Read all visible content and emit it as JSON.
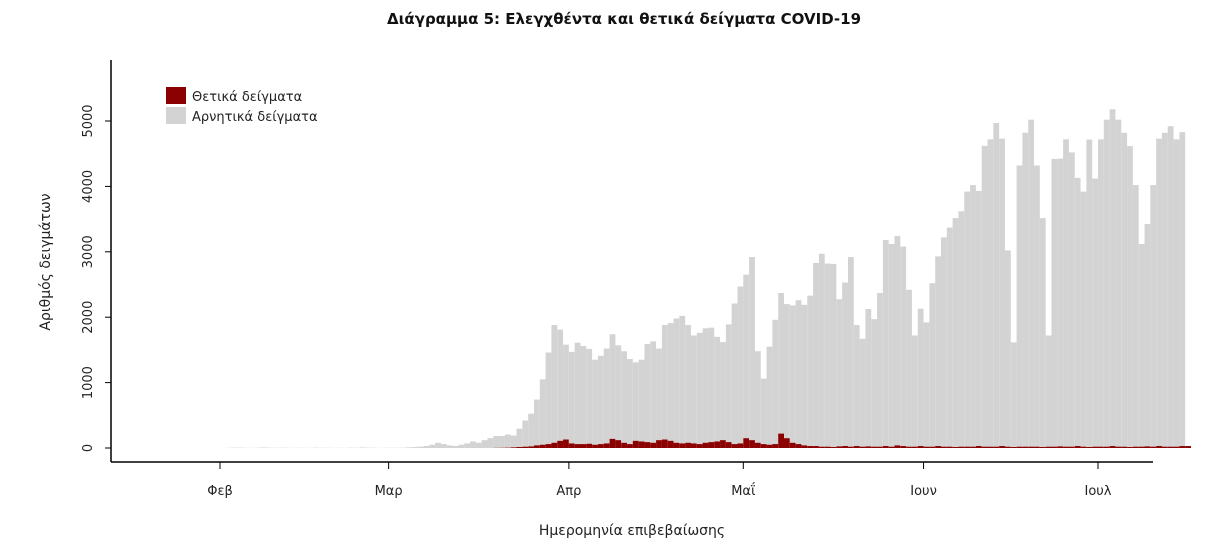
{
  "chart_data": {
    "type": "bar",
    "stacked": true,
    "title": "Διάγραμμα 5: Ελεγχθέντα και θετικά δείγματα COVID-19",
    "xlabel": "Ημερομηνία επιβεβαίωσης",
    "ylabel": "Αριθμός δειγμάτων",
    "ylim": [
      0,
      5700
    ],
    "yticks": [
      0,
      1000,
      2000,
      3000,
      4000,
      5000
    ],
    "xlim": [
      "2020-01-16",
      "2020-07-08"
    ],
    "xticks": [
      {
        "date": "2020-02-01",
        "label": "Φεβ"
      },
      {
        "date": "2020-03-01",
        "label": "Μαρ"
      },
      {
        "date": "2020-04-01",
        "label": "Απρ"
      },
      {
        "date": "2020-05-01",
        "label": "Μαΐ"
      },
      {
        "date": "2020-06-01",
        "label": "Ιουν"
      },
      {
        "date": "2020-07-01",
        "label": "Ιουλ"
      }
    ],
    "legend_position": "top-left",
    "series": [
      {
        "name": "Θετικά δείγματα",
        "color": "#8b0000",
        "values": [
          0,
          0,
          0,
          0,
          0,
          0,
          0,
          0,
          0,
          0,
          0,
          0,
          0,
          0,
          0,
          0,
          0,
          0,
          0,
          0,
          0,
          0,
          0,
          0,
          0,
          0,
          0,
          0,
          0,
          0,
          0,
          0,
          0,
          0,
          0,
          0,
          0,
          0,
          0,
          0,
          0,
          0,
          0,
          0,
          0,
          0,
          0,
          0,
          0,
          0,
          0,
          0,
          0,
          0,
          0,
          0,
          0,
          0,
          0,
          0,
          0,
          0,
          0,
          2,
          3,
          5,
          10,
          15,
          20,
          25,
          40,
          50,
          60,
          80,
          110,
          130,
          70,
          60,
          60,
          65,
          50,
          60,
          70,
          140,
          120,
          80,
          60,
          110,
          100,
          90,
          80,
          120,
          130,
          110,
          80,
          70,
          80,
          70,
          60,
          80,
          90,
          100,
          120,
          90,
          60,
          70,
          150,
          120,
          80,
          60,
          50,
          60,
          220,
          150,
          80,
          60,
          40,
          30,
          30,
          20,
          20,
          15,
          25,
          30,
          20,
          30,
          20,
          25,
          20,
          20,
          30,
          20,
          40,
          30,
          20,
          20,
          30,
          20,
          20,
          30,
          20,
          20,
          15,
          20,
          20,
          20,
          30,
          20,
          20,
          20,
          30,
          20,
          15,
          20,
          20,
          20,
          20,
          15,
          20,
          20,
          25,
          20,
          20,
          30,
          20,
          15,
          20,
          20,
          20,
          30,
          20,
          20,
          15,
          20,
          20,
          25,
          20,
          30,
          20,
          20,
          20,
          30,
          30
        ]
      },
      {
        "name": "Αρνητικά δείγματα",
        "color": "#d3d3d3",
        "values": [
          0,
          0,
          0,
          0,
          0,
          0,
          0,
          0,
          0,
          0,
          0,
          0,
          0,
          0,
          0,
          0,
          0,
          3,
          5,
          5,
          3,
          2,
          4,
          8,
          5,
          3,
          5,
          4,
          2,
          3,
          3,
          2,
          5,
          3,
          4,
          2,
          3,
          2,
          5,
          3,
          8,
          5,
          4,
          2,
          3,
          4,
          3,
          5,
          10,
          15,
          20,
          30,
          50,
          80,
          60,
          40,
          30,
          50,
          70,
          100,
          80,
          120,
          150,
          180,
          180,
          200,
          180,
          280,
          400,
          500,
          700,
          1000,
          1400,
          1800,
          1700,
          1450,
          1400,
          1550,
          1500,
          1450,
          1300,
          1350,
          1450,
          1600,
          1450,
          1400,
          1300,
          1200,
          1250,
          1500,
          1550,
          1400,
          1750,
          1800,
          1900,
          1950,
          1800,
          1650,
          1700,
          1750,
          1750,
          1600,
          1500,
          1800,
          2150,
          2400,
          2500,
          2800,
          1400,
          1000,
          1500,
          1900,
          2150,
          2050,
          2100,
          2200,
          2150,
          2300,
          2800,
          2950,
          2800,
          2800,
          2250,
          2500,
          2900,
          1850,
          1650,
          2100,
          1950,
          2350,
          3150,
          3100,
          3200,
          3050,
          2400,
          1700,
          2100,
          1900,
          2500,
          2900,
          3200,
          3350,
          3500,
          3600,
          3900,
          4000,
          3900,
          4600,
          4700,
          4950,
          4700,
          3000,
          1600,
          4300,
          4800,
          5000,
          4300,
          3500,
          1700,
          4400,
          4400,
          4700,
          4500,
          4100,
          3900,
          4700,
          4100,
          4700,
          5000,
          5150,
          5000,
          4800,
          4600,
          4000,
          3100,
          3400,
          4000,
          4700,
          4800,
          4900,
          4700,
          4800
        ]
      }
    ]
  }
}
